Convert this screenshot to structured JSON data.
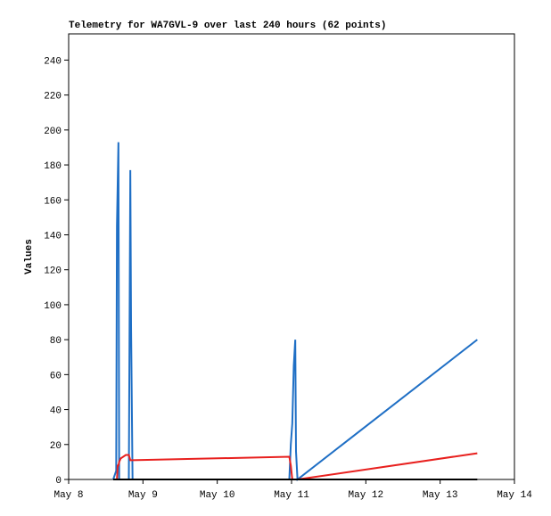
{
  "chart_data": {
    "type": "line",
    "title": "Telemetry for WA7GVL-9 over last 240 hours (62 points)",
    "y_label": "Values",
    "x": [
      8.6,
      8.64,
      8.65,
      8.66,
      8.67,
      8.68,
      8.7,
      8.77,
      8.81,
      8.83,
      8.84,
      8.86,
      10.97,
      10.99,
      11.01,
      11.03,
      11.05,
      11.06,
      11.08,
      13.5
    ],
    "series": [
      {
        "color": "#1f6fc5",
        "values": [
          0,
          5,
          145,
          169,
          193,
          0,
          0,
          0,
          0,
          177,
          88,
          0,
          0,
          20,
          32,
          65,
          80,
          16,
          0,
          80
        ]
      },
      {
        "color": "#e8201e",
        "values": [
          0,
          0,
          0,
          8,
          8,
          10,
          12,
          14,
          14,
          11,
          11,
          11,
          13,
          8,
          0,
          0,
          0,
          0,
          0,
          15
        ]
      },
      {
        "color": "#000000",
        "values": [
          0,
          0,
          0,
          0,
          0,
          0,
          0,
          0,
          0,
          0,
          0,
          0,
          0,
          0,
          0,
          0,
          0,
          0,
          0,
          0
        ]
      }
    ],
    "xlim": [
      8,
      14
    ],
    "xticks": [
      {
        "value": 8,
        "label": "May 8"
      },
      {
        "value": 9,
        "label": "May 9"
      },
      {
        "value": 10,
        "label": "May 10"
      },
      {
        "value": 11,
        "label": "May 11"
      },
      {
        "value": 12,
        "label": "May 12"
      },
      {
        "value": 13,
        "label": "May 13"
      },
      {
        "value": 14,
        "label": "May 14"
      }
    ],
    "ylim": [
      0,
      255
    ],
    "yticks": [
      0,
      20,
      40,
      60,
      80,
      100,
      120,
      140,
      160,
      180,
      200,
      220,
      240
    ]
  }
}
